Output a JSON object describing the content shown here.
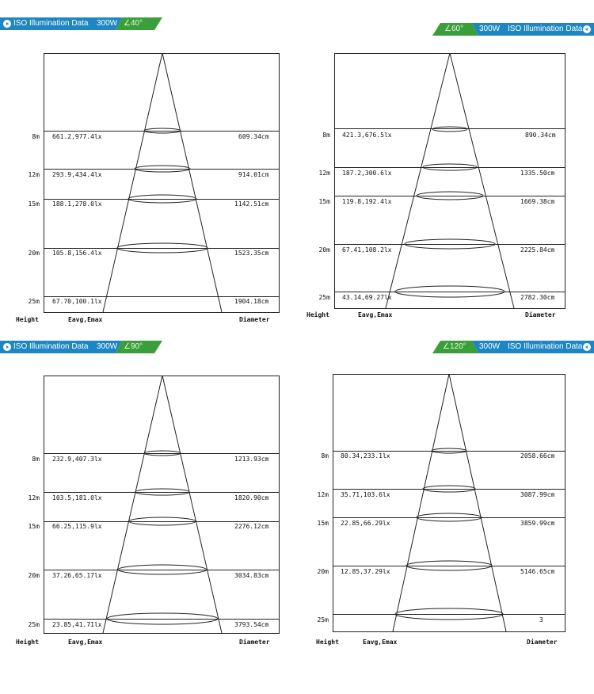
{
  "colors": {
    "banner_blue": "#1e86c2",
    "banner_green": "#3a9f3a",
    "line": "#222222"
  },
  "panels": [
    {
      "banner": {
        "title": "ISO Illumination  Data",
        "power": "300W",
        "angle": "40°",
        "icon": "arrow-right-circle-icon",
        "angle_icon": "angle-icon"
      },
      "rows": [
        {
          "height": "8m",
          "lux": "661.2,977.4lx",
          "diameter": "609.34cm"
        },
        {
          "height": "12m",
          "lux": "293.9,434.4lx",
          "diameter": "914.01cm"
        },
        {
          "height": "15m",
          "lux": "188.1,278.0lx",
          "diameter": "1142.51cm"
        },
        {
          "height": "20m",
          "lux": "105.8,156.4lx",
          "diameter": "1523.35cm"
        },
        {
          "height": "25m",
          "lux": "67.70,100.1lx",
          "diameter": "1904.18cm"
        }
      ],
      "footer": {
        "height": "Height",
        "lux": "Eavg,Emax",
        "diameter": "Diameter"
      }
    },
    {
      "banner": {
        "title": "ISO Illumination  Data",
        "power": "300W",
        "angle": "60°",
        "icon": "arrow-left-circle-icon",
        "angle_icon": "angle-icon"
      },
      "rows": [
        {
          "height": "8m",
          "lux": "421.3,676.5lx",
          "diameter": "890.34cm"
        },
        {
          "height": "12m",
          "lux": "187.2,300.6lx",
          "diameter": "1335.50cm"
        },
        {
          "height": "15m",
          "lux": "119.8,192.4lx",
          "diameter": "1669.38cm"
        },
        {
          "height": "20m",
          "lux": "67.41,108.2lx",
          "diameter": "2225.84cm"
        },
        {
          "height": "25m",
          "lux": "43.14,69.27lx",
          "diameter": "2782.30cm"
        }
      ],
      "footer": {
        "height": "Height",
        "lux": "Eavg,Emax",
        "diameter": "Diameter"
      }
    },
    {
      "banner": {
        "title": "ISO Illumination  Data",
        "power": "300W",
        "angle": "90°",
        "icon": "arrow-right-circle-icon",
        "angle_icon": "angle-icon"
      },
      "rows": [
        {
          "height": "8m",
          "lux": "232.9,407.3lx",
          "diameter": "1213.93cm"
        },
        {
          "height": "12m",
          "lux": "103.5,181.0lx",
          "diameter": "1820.90cm"
        },
        {
          "height": "15m",
          "lux": "66.25,115.9lx",
          "diameter": "2276.12cm"
        },
        {
          "height": "20m",
          "lux": "37.26,65.17lx",
          "diameter": "3034.83cm"
        },
        {
          "height": "25m",
          "lux": "23.85,41.71lx",
          "diameter": "3793.54cm"
        }
      ],
      "footer": {
        "height": "Height",
        "lux": "Eavg,Emax",
        "diameter": "Diameter"
      }
    },
    {
      "banner": {
        "title": "ISO Illumination  Data",
        "power": "300W",
        "angle": "120°",
        "icon": "arrow-left-circle-icon",
        "angle_icon": "angle-icon"
      },
      "rows": [
        {
          "height": "8m",
          "lux": "80.34,233.1lx",
          "diameter": "2058.66cm"
        },
        {
          "height": "12m",
          "lux": "35.71,103.6lx",
          "diameter": "3087.99cm"
        },
        {
          "height": "15m",
          "lux": "22.85,66.29lx",
          "diameter": "3859.99cm"
        },
        {
          "height": "20m",
          "lux": "12.85,37.29lx",
          "diameter": "5146.65cm"
        },
        {
          "height": "25m",
          "lux": "",
          "diameter": "3"
        }
      ],
      "footer": {
        "height": "Height",
        "lux": "Eavg,Emax",
        "diameter": "Diameter"
      }
    }
  ]
}
